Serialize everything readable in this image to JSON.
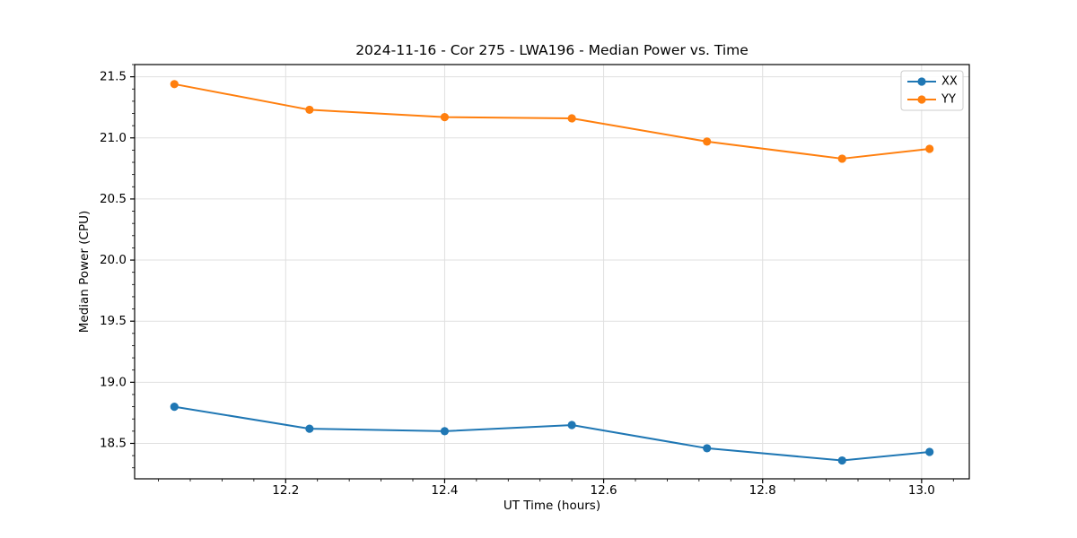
{
  "figure": {
    "background": "#ffffff",
    "frame_color": "#000000",
    "grid_color": "#e0e0e0",
    "text_color": "#000000"
  },
  "chart_data": {
    "type": "line",
    "title": "2024-11-16 - Cor 275 - LWA196 - Median Power vs. Time",
    "xlabel": "UT Time (hours)",
    "ylabel": "Median Power (CPU)",
    "x": [
      12.06,
      12.23,
      12.4,
      12.56,
      12.73,
      12.9,
      13.01
    ],
    "series": [
      {
        "name": "XX",
        "color": "#1f77b4",
        "marker": "o",
        "values": [
          18.8,
          18.62,
          18.6,
          18.65,
          18.46,
          18.36,
          18.43
        ]
      },
      {
        "name": "YY",
        "color": "#ff7f0e",
        "marker": "o",
        "values": [
          21.44,
          21.23,
          21.17,
          21.16,
          20.97,
          20.83,
          20.91
        ]
      }
    ],
    "xlim": [
      12.01,
      13.06
    ],
    "ylim": [
      18.21,
      21.6
    ],
    "xticks": [
      12.2,
      12.4,
      12.6,
      12.8,
      13.0
    ],
    "yticks": [
      18.5,
      19.0,
      19.5,
      20.0,
      20.5,
      21.0,
      21.5
    ],
    "minor_xtick_step": 0.04,
    "minor_ytick_step": 0.1,
    "grid": true,
    "legend_position": "upper right",
    "legend_labels": [
      "XX",
      "YY"
    ]
  }
}
